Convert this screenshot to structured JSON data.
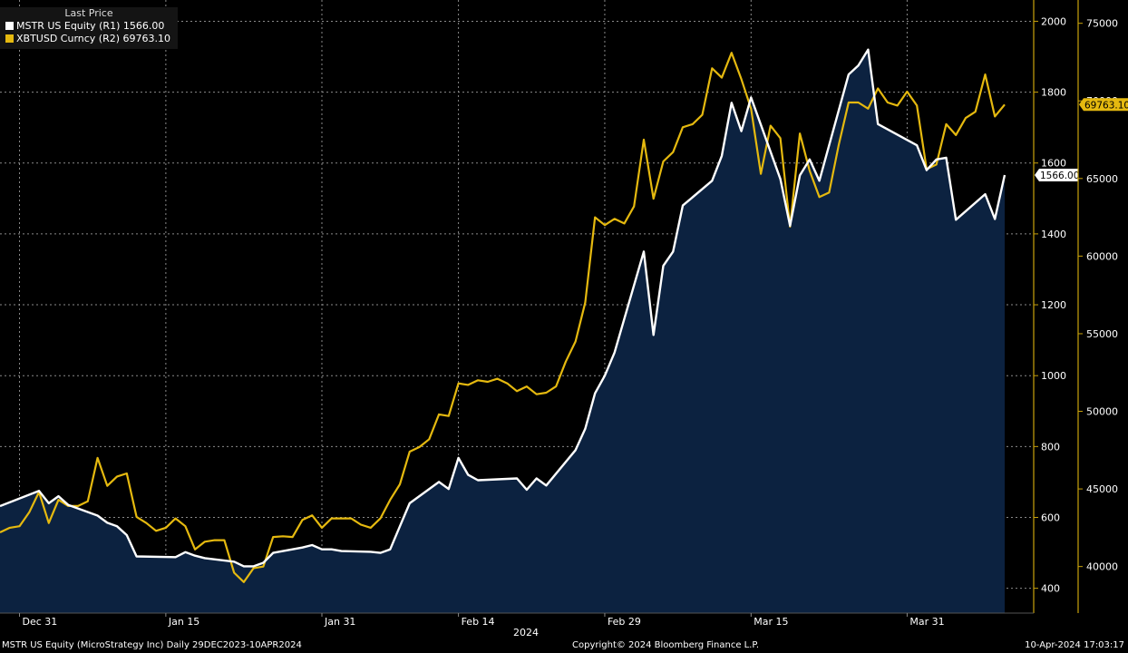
{
  "legend": {
    "header": "Last Price",
    "series1_label": "MSTR US Equity  (R1)  1566.00",
    "series2_label": "XBTUSD Curncy  (R2)  69763.10"
  },
  "colors": {
    "mstr_line": "#ffffff",
    "mstr_fill": "#0c2240",
    "btc_line": "#e5b90f",
    "grid": "#8a8a8a",
    "axis": "#c9a20c"
  },
  "footer": {
    "left": "MSTR US Equity (MicroStrategy Inc)  Daily 29DEC2023-10APR2024",
    "center": "Copyright© 2024 Bloomberg Finance L.P.",
    "right": "10-Apr-2024 17:03:17"
  },
  "chart_data": {
    "type": "line",
    "x_range": [
      "2023-12-29",
      "2024-04-10"
    ],
    "x_ticks": [
      {
        "label": "Dec 31",
        "date": "2023-12-31"
      },
      {
        "label": "Jan 15",
        "date": "2024-01-15"
      },
      {
        "label": "Jan 31",
        "date": "2024-01-31"
      },
      {
        "label": "Feb 14",
        "date": "2024-02-14"
      },
      {
        "label": "Feb 29",
        "date": "2024-02-29"
      },
      {
        "label": "Mar 15",
        "date": "2024-03-15"
      },
      {
        "label": "Mar 31",
        "date": "2024-03-31"
      }
    ],
    "year_label": "2024",
    "r1_axis": {
      "range": [
        330,
        2060
      ],
      "ticks": [
        400,
        600,
        800,
        1000,
        1200,
        1400,
        1600,
        1800,
        2000
      ]
    },
    "r2_axis": {
      "range": [
        37000,
        76500
      ],
      "ticks": [
        40000,
        45000,
        50000,
        55000,
        60000,
        65000,
        70000,
        75000
      ]
    },
    "series": [
      {
        "name": "MSTR US Equity",
        "axis": "R1",
        "last_label": "1566.00",
        "points": [
          [
            "2023-12-29",
            632
          ],
          [
            "2024-01-02",
            675
          ],
          [
            "2024-01-03",
            640
          ],
          [
            "2024-01-04",
            660
          ],
          [
            "2024-01-05",
            635
          ],
          [
            "2024-01-08",
            605
          ],
          [
            "2024-01-09",
            585
          ],
          [
            "2024-01-10",
            575
          ],
          [
            "2024-01-11",
            550
          ],
          [
            "2024-01-12",
            490
          ],
          [
            "2024-01-16",
            488
          ],
          [
            "2024-01-17",
            502
          ],
          [
            "2024-01-18",
            492
          ],
          [
            "2024-01-19",
            485
          ],
          [
            "2024-01-22",
            475
          ],
          [
            "2024-01-23",
            462
          ],
          [
            "2024-01-24",
            462
          ],
          [
            "2024-01-25",
            472
          ],
          [
            "2024-01-26",
            500
          ],
          [
            "2024-01-29",
            515
          ],
          [
            "2024-01-30",
            522
          ],
          [
            "2024-01-31",
            510
          ],
          [
            "2024-02-01",
            510
          ],
          [
            "2024-02-02",
            505
          ],
          [
            "2024-02-05",
            503
          ],
          [
            "2024-02-06",
            500
          ],
          [
            "2024-02-07",
            510
          ],
          [
            "2024-02-08",
            575
          ],
          [
            "2024-02-09",
            640
          ],
          [
            "2024-02-12",
            700
          ],
          [
            "2024-02-13",
            680
          ],
          [
            "2024-02-14",
            768
          ],
          [
            "2024-02-15",
            720
          ],
          [
            "2024-02-16",
            705
          ],
          [
            "2024-02-20",
            710
          ],
          [
            "2024-02-21",
            678
          ],
          [
            "2024-02-22",
            710
          ],
          [
            "2024-02-23",
            690
          ],
          [
            "2024-02-26",
            790
          ],
          [
            "2024-02-27",
            850
          ],
          [
            "2024-02-28",
            950
          ],
          [
            "2024-02-29",
            1000
          ],
          [
            "2024-03-01",
            1065
          ],
          [
            "2024-03-04",
            1350
          ],
          [
            "2024-03-05",
            1115
          ],
          [
            "2024-03-06",
            1310
          ],
          [
            "2024-03-07",
            1350
          ],
          [
            "2024-03-08",
            1480
          ],
          [
            "2024-03-11",
            1550
          ],
          [
            "2024-03-12",
            1620
          ],
          [
            "2024-03-13",
            1770
          ],
          [
            "2024-03-14",
            1690
          ],
          [
            "2024-03-15",
            1785
          ],
          [
            "2024-03-18",
            1555
          ],
          [
            "2024-03-19",
            1423
          ],
          [
            "2024-03-20",
            1565
          ],
          [
            "2024-03-21",
            1610
          ],
          [
            "2024-03-22",
            1550
          ],
          [
            "2024-03-25",
            1850
          ],
          [
            "2024-03-26",
            1875
          ],
          [
            "2024-03-27",
            1920
          ],
          [
            "2024-03-28",
            1710
          ],
          [
            "2024-04-01",
            1650
          ],
          [
            "2024-04-02",
            1580
          ],
          [
            "2024-04-03",
            1610
          ],
          [
            "2024-04-04",
            1615
          ],
          [
            "2024-04-05",
            1440
          ],
          [
            "2024-04-08",
            1512
          ],
          [
            "2024-04-09",
            1442
          ],
          [
            "2024-04-10",
            1566
          ]
        ]
      },
      {
        "name": "XBTUSD Curncy",
        "axis": "R2",
        "last_label": "69763.10",
        "points": [
          [
            "2023-12-29",
            42200
          ],
          [
            "2023-12-30",
            42500
          ],
          [
            "2023-12-31",
            42600
          ],
          [
            "2024-01-01",
            43500
          ],
          [
            "2024-01-02",
            44800
          ],
          [
            "2024-01-03",
            42800
          ],
          [
            "2024-01-04",
            44300
          ],
          [
            "2024-01-05",
            43900
          ],
          [
            "2024-01-06",
            43900
          ],
          [
            "2024-01-07",
            44200
          ],
          [
            "2024-01-08",
            47000
          ],
          [
            "2024-01-09",
            45200
          ],
          [
            "2024-01-10",
            45800
          ],
          [
            "2024-01-11",
            46000
          ],
          [
            "2024-01-12",
            43200
          ],
          [
            "2024-01-13",
            42800
          ],
          [
            "2024-01-14",
            42300
          ],
          [
            "2024-01-15",
            42500
          ],
          [
            "2024-01-16",
            43100
          ],
          [
            "2024-01-17",
            42600
          ],
          [
            "2024-01-18",
            41100
          ],
          [
            "2024-01-19",
            41600
          ],
          [
            "2024-01-20",
            41700
          ],
          [
            "2024-01-21",
            41700
          ],
          [
            "2024-01-22",
            39600
          ],
          [
            "2024-01-23",
            39000
          ],
          [
            "2024-01-24",
            39900
          ],
          [
            "2024-01-25",
            40000
          ],
          [
            "2024-01-26",
            41900
          ],
          [
            "2024-01-27",
            41950
          ],
          [
            "2024-01-28",
            41900
          ],
          [
            "2024-01-29",
            43000
          ],
          [
            "2024-01-30",
            43300
          ],
          [
            "2024-01-31",
            42500
          ],
          [
            "2024-02-01",
            43100
          ],
          [
            "2024-02-02",
            43100
          ],
          [
            "2024-02-03",
            43100
          ],
          [
            "2024-02-04",
            42700
          ],
          [
            "2024-02-05",
            42500
          ],
          [
            "2024-02-06",
            43100
          ],
          [
            "2024-02-07",
            44300
          ],
          [
            "2024-02-08",
            45300
          ],
          [
            "2024-02-09",
            47400
          ],
          [
            "2024-02-10",
            47700
          ],
          [
            "2024-02-11",
            48200
          ],
          [
            "2024-02-12",
            49800
          ],
          [
            "2024-02-13",
            49700
          ],
          [
            "2024-02-14",
            51800
          ],
          [
            "2024-02-15",
            51700
          ],
          [
            "2024-02-16",
            52000
          ],
          [
            "2024-02-17",
            51900
          ],
          [
            "2024-02-18",
            52100
          ],
          [
            "2024-02-19",
            51800
          ],
          [
            "2024-02-20",
            51300
          ],
          [
            "2024-02-21",
            51600
          ],
          [
            "2024-02-22",
            51100
          ],
          [
            "2024-02-23",
            51200
          ],
          [
            "2024-02-24",
            51600
          ],
          [
            "2024-02-25",
            53200
          ],
          [
            "2024-02-26",
            54500
          ],
          [
            "2024-02-27",
            57000
          ],
          [
            "2024-02-28",
            62500
          ],
          [
            "2024-02-29",
            62000
          ],
          [
            "2024-03-01",
            62400
          ],
          [
            "2024-03-02",
            62100
          ],
          [
            "2024-03-03",
            63200
          ],
          [
            "2024-03-04",
            67500
          ],
          [
            "2024-03-05",
            63700
          ],
          [
            "2024-03-06",
            66100
          ],
          [
            "2024-03-07",
            66700
          ],
          [
            "2024-03-08",
            68300
          ],
          [
            "2024-03-09",
            68500
          ],
          [
            "2024-03-10",
            69100
          ],
          [
            "2024-03-11",
            72100
          ],
          [
            "2024-03-12",
            71500
          ],
          [
            "2024-03-13",
            73100
          ],
          [
            "2024-03-14",
            71400
          ],
          [
            "2024-03-15",
            69500
          ],
          [
            "2024-03-16",
            65300
          ],
          [
            "2024-03-17",
            68400
          ],
          [
            "2024-03-18",
            67600
          ],
          [
            "2024-03-19",
            61900
          ],
          [
            "2024-03-20",
            67900
          ],
          [
            "2024-03-21",
            65500
          ],
          [
            "2024-03-22",
            63800
          ],
          [
            "2024-03-23",
            64100
          ],
          [
            "2024-03-24",
            67200
          ],
          [
            "2024-03-25",
            69900
          ],
          [
            "2024-03-26",
            69900
          ],
          [
            "2024-03-27",
            69500
          ],
          [
            "2024-03-28",
            70800
          ],
          [
            "2024-03-29",
            69900
          ],
          [
            "2024-03-30",
            69700
          ],
          [
            "2024-03-31",
            70600
          ],
          [
            "2024-04-01",
            69700
          ],
          [
            "2024-04-02",
            65600
          ],
          [
            "2024-04-03",
            65900
          ],
          [
            "2024-04-04",
            68500
          ],
          [
            "2024-04-05",
            67800
          ],
          [
            "2024-04-06",
            68900
          ],
          [
            "2024-04-07",
            69300
          ],
          [
            "2024-04-08",
            71700
          ],
          [
            "2024-04-09",
            69000
          ],
          [
            "2024-04-10",
            69763
          ]
        ]
      }
    ]
  }
}
